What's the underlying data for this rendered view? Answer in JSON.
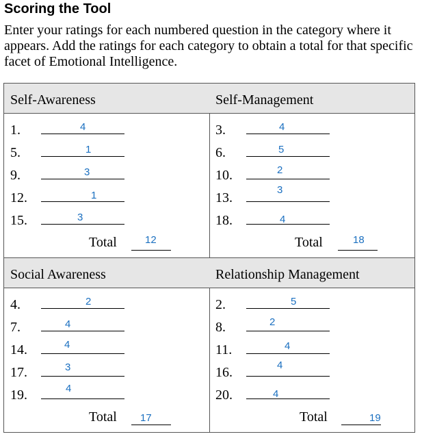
{
  "title": "Scoring the Tool",
  "intro": "Enter your ratings for each numbered question in the category where it appears. Add the ratings for each category to obtain a total for that specific facet of Emotional Intelligence.",
  "total_label": "Total",
  "categories": [
    {
      "name": "Self-Awareness",
      "items": [
        {
          "q": "1.",
          "rating": "4"
        },
        {
          "q": "5.",
          "rating": "1"
        },
        {
          "q": "9.",
          "rating": "3"
        },
        {
          "q": "12.",
          "rating": "1"
        },
        {
          "q": "15.",
          "rating": "3"
        }
      ],
      "total": "12"
    },
    {
      "name": "Self-Management",
      "items": [
        {
          "q": "3.",
          "rating": "4"
        },
        {
          "q": "6.",
          "rating": "5"
        },
        {
          "q": "10.",
          "rating": "2"
        },
        {
          "q": "13.",
          "rating": "3"
        },
        {
          "q": "18.",
          "rating": "4"
        }
      ],
      "total": "18"
    },
    {
      "name": "Social Awareness",
      "items": [
        {
          "q": "4.",
          "rating": "2"
        },
        {
          "q": "7.",
          "rating": "4"
        },
        {
          "q": "14.",
          "rating": "4"
        },
        {
          "q": "17.",
          "rating": "3"
        },
        {
          "q": "19.",
          "rating": "4"
        }
      ],
      "total": "17"
    },
    {
      "name": "Relationship Management",
      "items": [
        {
          "q": "2.",
          "rating": "5"
        },
        {
          "q": "8.",
          "rating": "2"
        },
        {
          "q": "11.",
          "rating": "4"
        },
        {
          "q": "16.",
          "rating": "4"
        },
        {
          "q": "20.",
          "rating": "4"
        }
      ],
      "total": "19"
    }
  ]
}
